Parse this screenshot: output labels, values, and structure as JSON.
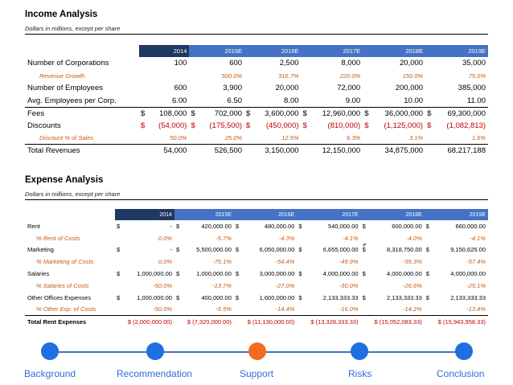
{
  "income": {
    "title": "Income Analysis",
    "subtitle": "Dollars in millions, except per share",
    "years": [
      "2014",
      "2015E",
      "2016E",
      "2017E",
      "2018E",
      "2019E"
    ],
    "rows": [
      {
        "label": "Number of Corporations",
        "style": "plain",
        "values": [
          "100",
          "600",
          "2,500",
          "8,000",
          "20,000",
          "35,000"
        ]
      },
      {
        "label": "Revenue Growth",
        "style": "italic",
        "values": [
          "",
          "500.0%",
          "316.7%",
          "220.0%",
          "150.0%",
          "75.0%"
        ]
      },
      {
        "label": "Number of Employees",
        "style": "plain",
        "values": [
          "600",
          "3,900",
          "20,000",
          "72,000",
          "200,000",
          "385,000"
        ]
      },
      {
        "label": "Avg. Employees per Corp.",
        "style": "plain",
        "values": [
          "6.00",
          "6.50",
          "8.00",
          "9.00",
          "10.00",
          "11.00"
        ]
      },
      {
        "label": "Fees",
        "style": "currency",
        "values": [
          "108,000",
          "702,000",
          "3,600,000",
          "12,960,000",
          "36,000,000",
          "69,300,000"
        ]
      },
      {
        "label": "Discounts",
        "style": "currency-red",
        "values": [
          "(54,000)",
          "(175,500)",
          "(450,000)",
          "(810,000)",
          "(1,125,000)",
          "(1,082,813)"
        ]
      },
      {
        "label": "Discount % of Sales",
        "style": "italic",
        "values": [
          "50.0%",
          "25.0%",
          "12.5%",
          "6.3%",
          "3.1%",
          "1.6%"
        ]
      },
      {
        "label": "Total Revenues",
        "style": "total",
        "values": [
          "54,000",
          "526,500",
          "3,150,000",
          "12,150,000",
          "34,875,000",
          "68,217,188"
        ]
      }
    ],
    "currency_symbol": "$"
  },
  "expense": {
    "title": "Expense Analysis",
    "subtitle": "Dollars in millions, except per share",
    "years": [
      "2014",
      "2015E",
      "2016E",
      "2017E",
      "2018E",
      "2019E"
    ],
    "rows": [
      {
        "label": "Rent",
        "style": "currency",
        "values": [
          "-",
          "420,000.00",
          "480,000.00",
          "540,000.00",
          "600,000.00",
          "660,000.00"
        ]
      },
      {
        "label": "% Rent of Costs",
        "style": "italic",
        "values": [
          "0.0%",
          "-5.7%",
          "-4.3%",
          "-4.1%",
          "-4.0%",
          "-4.1%"
        ]
      },
      {
        "label": "Marketing",
        "style": "currency",
        "values": [
          "-",
          "5,500,000.00",
          "6,050,000.00",
          "6,655,000.00",
          "8,318,750.00",
          "9,150,625.00"
        ]
      },
      {
        "label": "% Marketing of Costs",
        "style": "italic",
        "values": [
          "0.0%",
          "-75.1%",
          "-54.4%",
          "-49.9%",
          "-55.3%",
          "-57.4%"
        ]
      },
      {
        "label": "Salaries",
        "style": "currency",
        "values": [
          "1,000,000.00",
          "1,000,000.00",
          "3,000,000.00",
          "4,000,000.00",
          "4,000,000.00",
          "4,000,000.00"
        ]
      },
      {
        "label": "% Salaries of Costs",
        "style": "italic",
        "values": [
          "-50.0%",
          "-13.7%",
          "-27.0%",
          "-30.0%",
          "-26.6%",
          "-25.1%"
        ]
      },
      {
        "label": "Other Offices Expenses",
        "style": "currency",
        "values": [
          "1,000,000.00",
          "400,000.00",
          "1,600,000.00",
          "2,133,333.33",
          "2,133,333.33",
          "2,133,333.33"
        ]
      },
      {
        "label": "% Other Exp. of Costs",
        "style": "italic",
        "values": [
          "-50.0%",
          "-5.5%",
          "-14.4%",
          "-16.0%",
          "-14.2%",
          "-13.4%"
        ]
      },
      {
        "label": "Total Rent Expenses",
        "style": "total",
        "values": [
          "$ (2,000,000.00)",
          "$ (7,320,000.00)",
          "$ (11,130,000.00)",
          "$ (13,328,333.33)",
          "$ (15,052,083.33)",
          "$ (15,943,958.33)"
        ]
      }
    ],
    "currency_symbol": "$"
  },
  "timeline": {
    "steps": [
      "Background",
      "Recommendation",
      "Support",
      "Risks",
      "Conclusion"
    ],
    "active_index": 2,
    "colors": {
      "dot": "#1f6fe0",
      "active": "#f36b21",
      "line": "#4472c4",
      "label": "#2f6fd6"
    }
  }
}
